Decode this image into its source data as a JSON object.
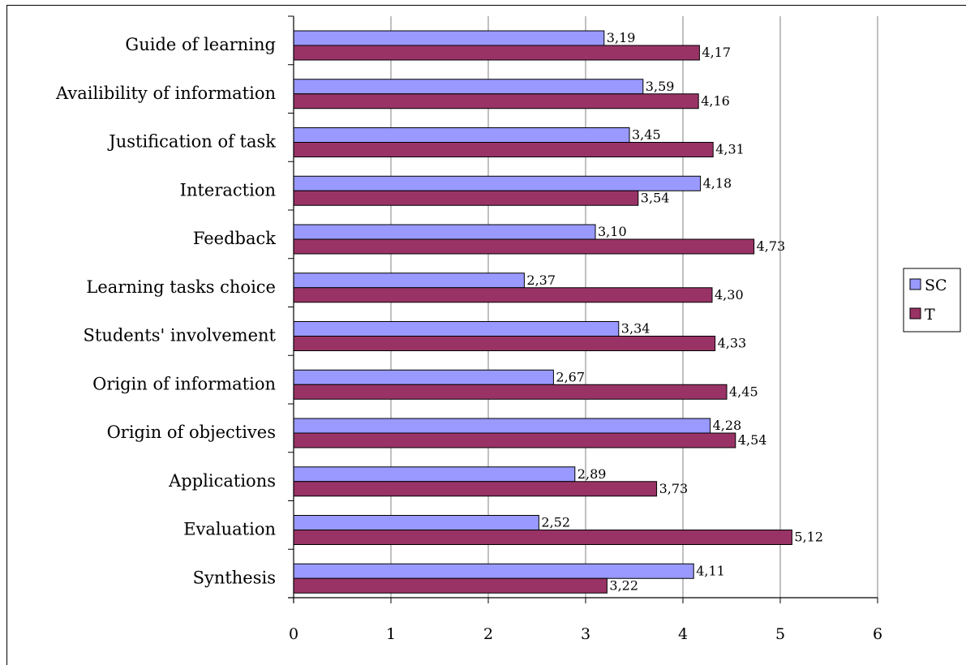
{
  "chart_data": {
    "type": "bar",
    "orientation": "horizontal",
    "categories": [
      "Guide of learning",
      "Availibility of information",
      "Justification of task",
      "Interaction",
      "Feedback",
      "Learning tasks choice",
      "Students' involvement",
      "Origin of information",
      "Origin of objectives",
      "Applications",
      "Evaluation",
      "Synthesis"
    ],
    "series": [
      {
        "name": "SC",
        "color": "#9999ff",
        "values": [
          3.19,
          3.59,
          3.45,
          4.18,
          3.1,
          2.37,
          3.34,
          2.67,
          4.28,
          2.89,
          2.52,
          4.11
        ],
        "labels": [
          "3,19",
          "3,59",
          "3,45",
          "4,18",
          "3,10",
          "2,37",
          "3,34",
          "2,67",
          "4,28",
          "2,89",
          "2,52",
          "4,11"
        ]
      },
      {
        "name": "T",
        "color": "#993366",
        "values": [
          4.17,
          4.16,
          4.31,
          3.54,
          4.73,
          4.3,
          4.33,
          4.45,
          4.54,
          3.73,
          5.12,
          3.22
        ],
        "labels": [
          "4,17",
          "4,16",
          "4,31",
          "3,54",
          "4,73",
          "4,30",
          "4,33",
          "4,45",
          "4,54",
          "3,73",
          "5,12",
          "3,22"
        ]
      }
    ],
    "xlim": [
      0,
      6
    ],
    "xticks": [
      0,
      1,
      2,
      3,
      4,
      5,
      6
    ],
    "grid": "vertical",
    "legend_position": "right",
    "title": "",
    "xlabel": "",
    "ylabel": ""
  }
}
